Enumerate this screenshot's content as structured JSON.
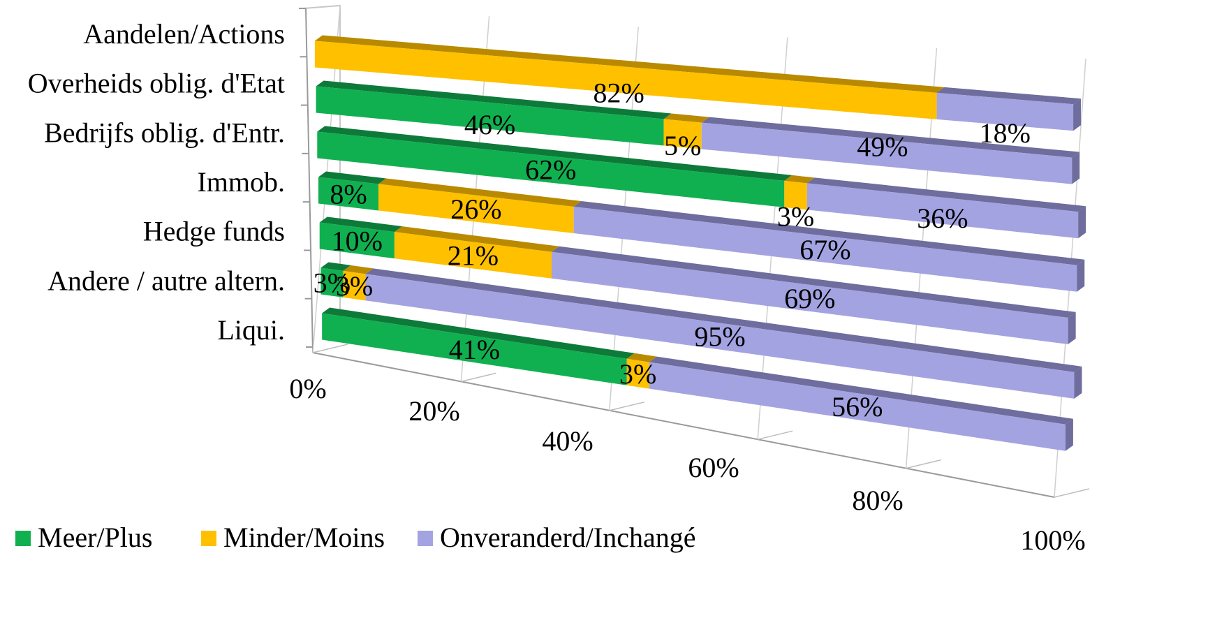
{
  "chart_data": {
    "type": "bar",
    "orientation": "horizontal",
    "stacked": "100%",
    "style": "3d",
    "categories": [
      "Aandelen/Actions",
      "Overheids oblig. d'Etat",
      "Bedrijfs oblig. d'Entr.",
      "Immob.",
      "Hedge funds",
      "Andere / autre altern.",
      "Liqui."
    ],
    "series": [
      {
        "name": "Meer/Plus",
        "color": "#10b050",
        "side": "#0d7a3a",
        "values": [
          0,
          46,
          62,
          8,
          10,
          3,
          41
        ],
        "labels": [
          "",
          "46%",
          "62%",
          "8%",
          "10%",
          "3%",
          "41%"
        ]
      },
      {
        "name": "Minder/Moins",
        "color": "#ffc000",
        "side": "#b98a00",
        "values": [
          82,
          5,
          3,
          26,
          21,
          3,
          3
        ],
        "labels": [
          "82%",
          "5%",
          "3%",
          "26%",
          "21%",
          "3%",
          "3%"
        ]
      },
      {
        "name": "Onveranderd/Inchangé",
        "color": "#a4a3e1",
        "side": "#6e6d9d",
        "values": [
          18,
          49,
          36,
          67,
          69,
          95,
          56
        ],
        "labels": [
          "18%",
          "49%",
          "36%",
          "67%",
          "69%",
          "95%",
          "56%"
        ]
      }
    ],
    "x_ticks": [
      "0%",
      "20%",
      "40%",
      "60%",
      "80%",
      "100%"
    ],
    "xlim": [
      0,
      100
    ],
    "legend_position": "bottom",
    "grid": true
  }
}
